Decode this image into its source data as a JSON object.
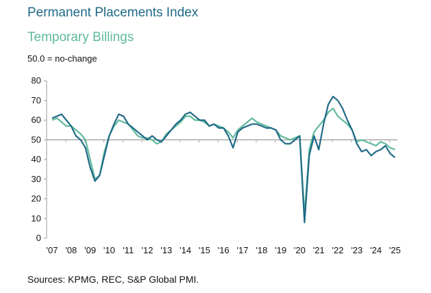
{
  "chart_data": {
    "type": "line",
    "title": "",
    "legend": [
      "Permanent Placements Index",
      "Temporary Billings"
    ],
    "subtitle": "50.0 = no-change",
    "source": "Sources: KPMG, REC, S&P Global PMI.",
    "ylim": [
      0,
      80
    ],
    "yticks": [
      0,
      10,
      20,
      30,
      40,
      50,
      60,
      70,
      80
    ],
    "xticks": [
      "'07",
      "'08",
      "'09",
      "'10",
      "'11",
      "'12",
      "'13",
      "'14",
      "'15",
      "'16",
      "'17",
      "'18",
      "'19",
      "'20",
      "'21",
      "'22",
      "'23",
      "'24",
      "'25"
    ],
    "x_start": 2007,
    "x_step": 0.25,
    "reference_line": 50,
    "series": [
      {
        "name": "Permanent Placements Index",
        "color": "#1f6a87",
        "values": [
          61,
          62,
          63,
          60,
          57,
          52,
          50,
          46,
          36,
          29,
          32,
          42,
          52,
          58,
          63,
          62,
          58,
          56,
          54,
          52,
          50,
          52,
          50,
          49,
          52,
          55,
          58,
          60,
          63,
          64,
          62,
          60,
          60,
          57,
          58,
          56,
          56,
          52,
          46,
          54,
          56,
          57,
          58,
          58,
          57,
          56,
          56,
          55,
          50,
          48,
          48,
          50,
          52,
          8,
          42,
          52,
          45,
          58,
          68,
          72,
          70,
          66,
          60,
          55,
          48,
          44,
          45,
          42,
          44,
          45,
          47,
          43,
          41
        ]
      },
      {
        "name": "Temporary Billings",
        "color": "#5fb99d",
        "values": [
          60,
          61,
          59,
          57,
          57,
          55,
          53,
          50,
          40,
          30,
          32,
          44,
          52,
          57,
          60,
          59,
          58,
          55,
          52,
          51,
          51,
          50,
          48,
          49,
          53,
          55,
          57,
          59,
          62,
          62,
          60,
          60,
          59,
          57,
          58,
          57,
          56,
          54,
          51,
          55,
          57,
          59,
          61,
          59,
          58,
          57,
          56,
          55,
          52,
          51,
          50,
          51,
          52,
          12,
          45,
          54,
          57,
          60,
          64,
          66,
          62,
          60,
          58,
          55,
          49,
          50,
          49,
          48,
          47,
          49,
          48,
          46,
          45
        ]
      }
    ]
  }
}
